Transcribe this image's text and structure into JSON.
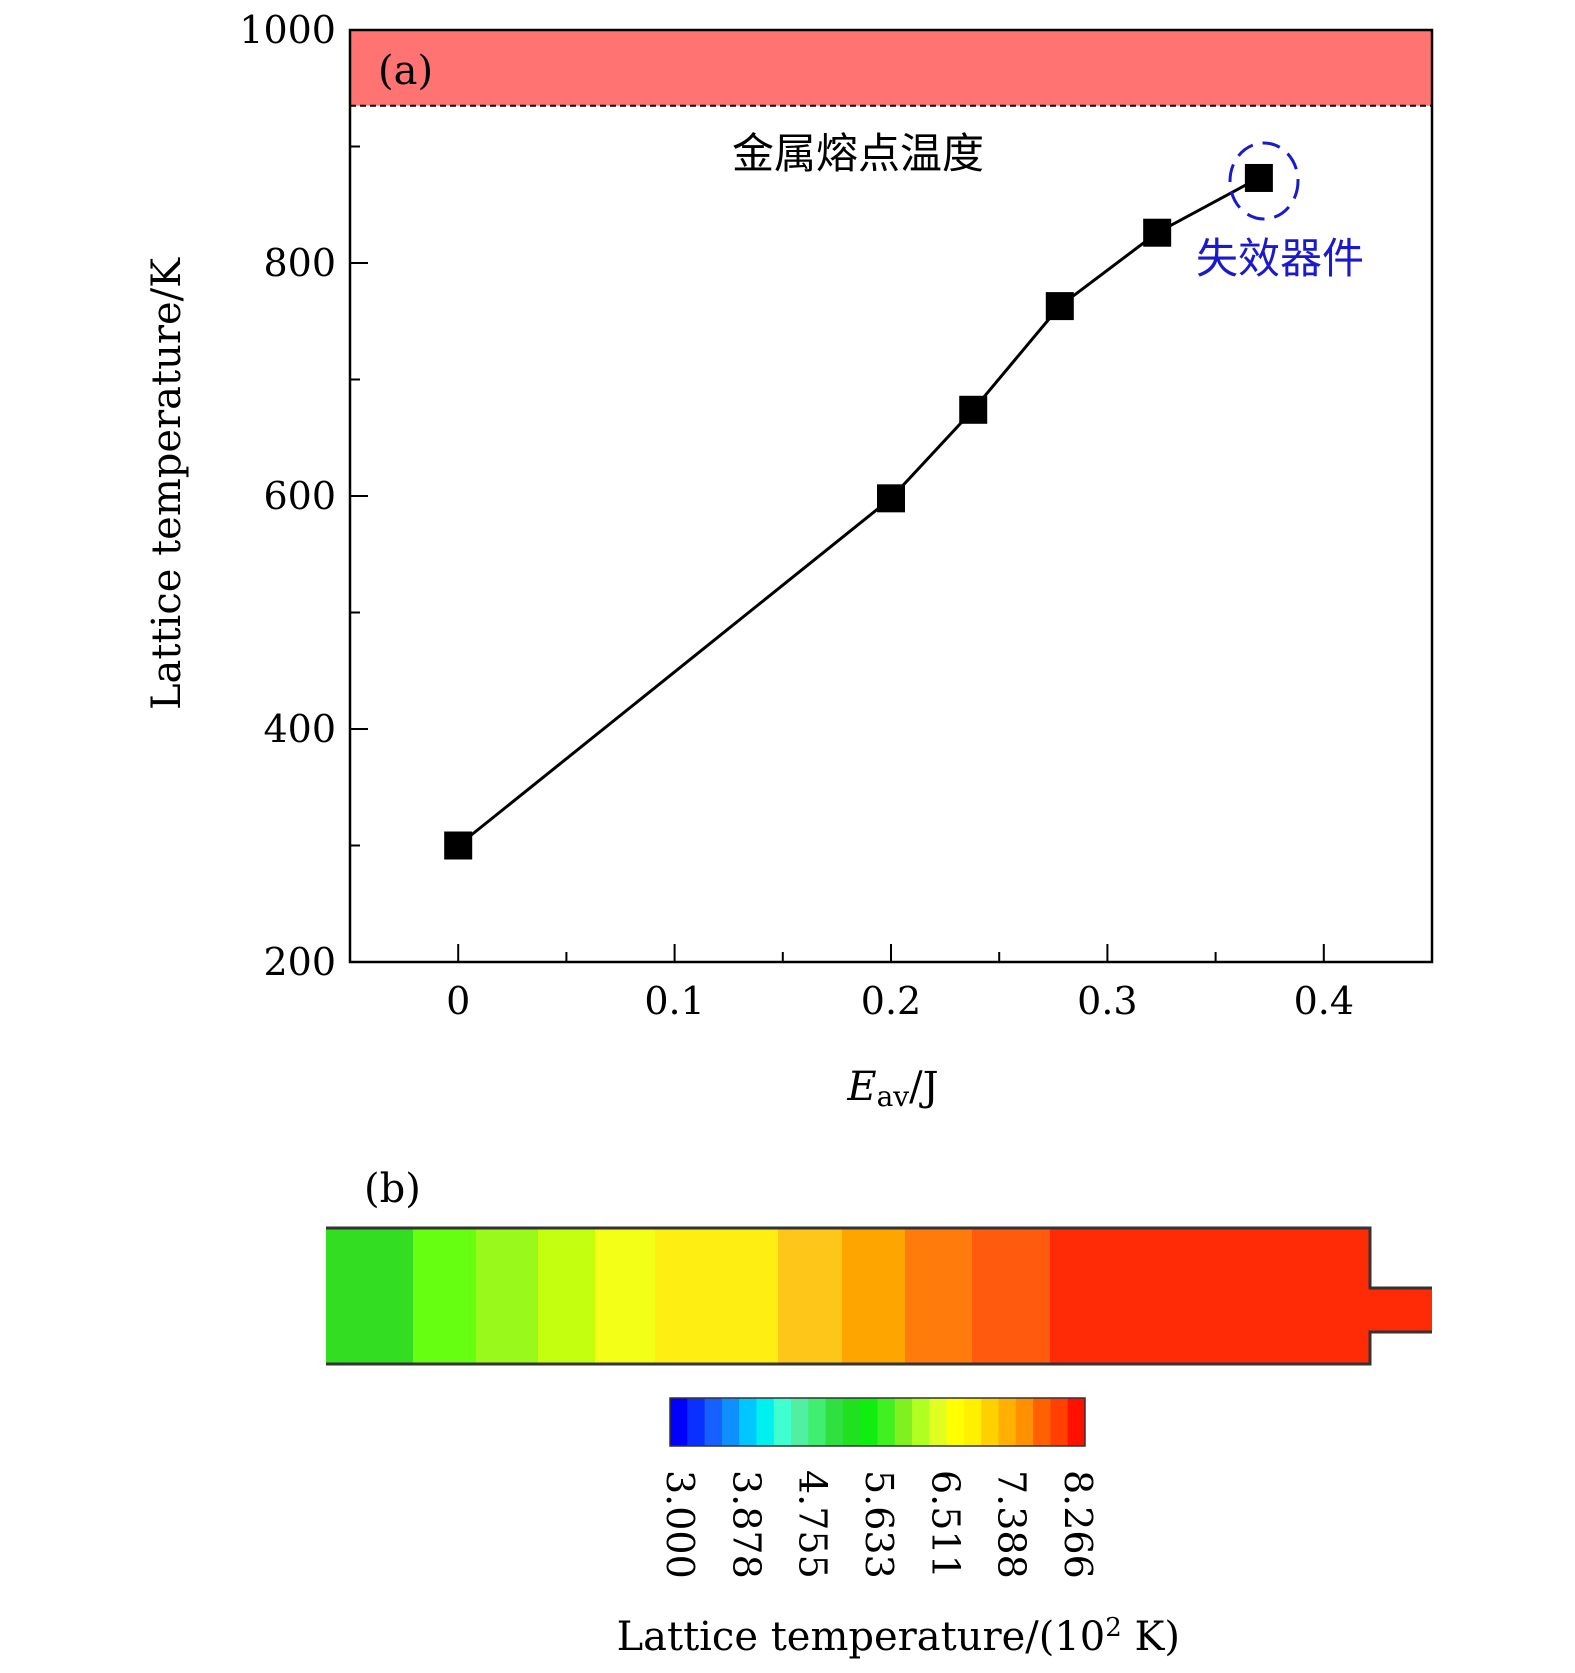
{
  "chart_data": [
    {
      "type": "line",
      "panel_label": "(a)",
      "x": [
        0,
        0.2,
        0.238,
        0.278,
        0.323,
        0.37
      ],
      "series": [
        {
          "values": [
            300,
            598,
            674,
            763,
            826,
            873
          ],
          "marker": "square",
          "color": "#000000"
        }
      ],
      "xlabel_main": "E",
      "xlabel_sub": "av",
      "xlabel_tail": "/J",
      "ylabel": "Lattice temperature/K",
      "xlim": [
        -0.05,
        0.45
      ],
      "ylim": [
        200,
        1000
      ],
      "xticks": [
        0,
        0.1,
        0.2,
        0.3,
        0.4
      ],
      "xtick_labels": [
        "0",
        "0.1",
        "0.2",
        "0.3",
        "0.4"
      ],
      "yticks": [
        200,
        400,
        600,
        800,
        1000
      ],
      "ytick_labels": [
        "200",
        "400",
        "600",
        "800",
        "1000"
      ],
      "melting_threshold": 935,
      "melting_band_color": "#ff7373",
      "melting_label": "金属熔点温度",
      "failed_point_label": "失效器件",
      "failed_point_color": "#1a1acc",
      "grid": false
    },
    {
      "type": "heatmap",
      "panel_label": "(b)",
      "bands": [
        {
          "value": 5.55,
          "color": "#33dd22"
        },
        {
          "value": 5.75,
          "color": "#66ff11"
        },
        {
          "value": 6.0,
          "color": "#99f91a"
        },
        {
          "value": 6.25,
          "color": "#c4ff10"
        },
        {
          "value": 6.6,
          "color": "#f4ff18"
        },
        {
          "value": 7.0,
          "color": "#ffee11"
        },
        {
          "value": 7.3,
          "color": "#ffc61a"
        },
        {
          "value": 7.55,
          "color": "#ffa500"
        },
        {
          "value": 7.8,
          "color": "#ff7c0c"
        },
        {
          "value": 8.0,
          "color": "#ff5a0e"
        },
        {
          "value": 8.2,
          "color": "#ff2a06"
        }
      ],
      "colorbar": {
        "ticks": [
          "3.000",
          "3.878",
          "4.755",
          "5.633",
          "6.511",
          "7.388",
          "8.266"
        ],
        "label_main": "Lattice temperature/(10",
        "label_sup": "2",
        "label_tail": " K)",
        "colors": [
          "#0000ff",
          "#0a30ff",
          "#1560ff",
          "#1090ff",
          "#00c8ff",
          "#00f0f0",
          "#40ffd0",
          "#50f0a0",
          "#40ee70",
          "#30e040",
          "#20e020",
          "#10ee10",
          "#40f020",
          "#80f020",
          "#b0ff20",
          "#e0ff20",
          "#ffff00",
          "#fff000",
          "#ffd000",
          "#ffb000",
          "#ff9000",
          "#ff6000",
          "#ff4000",
          "#ff1000"
        ]
      }
    }
  ]
}
